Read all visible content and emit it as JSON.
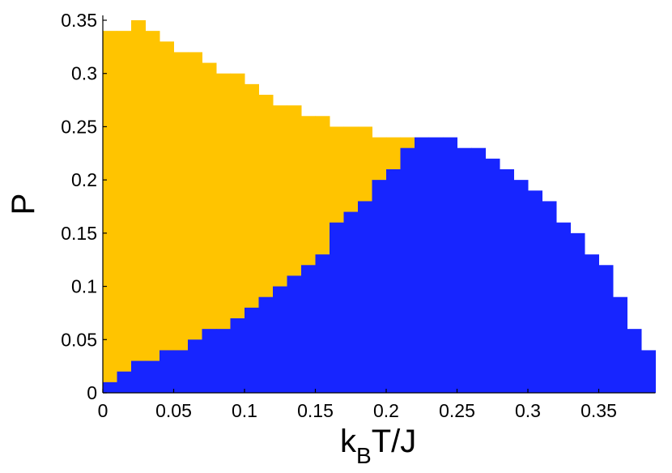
{
  "chart_data": {
    "type": "area",
    "xlabel": "k_B T/J",
    "xlabel_main": "k",
    "xlabel_sub": "B",
    "xlabel_rest": "T/J",
    "ylabel": "P",
    "xlim": [
      0,
      0.39
    ],
    "ylim": [
      0,
      0.35
    ],
    "x_ticks": [
      0,
      0.05,
      0.1,
      0.15,
      0.2,
      0.25,
      0.3,
      0.35
    ],
    "x_tick_labels": [
      "0",
      "0.05",
      "0.1",
      "0.15",
      "0.2",
      "0.25",
      "0.3",
      "0.35"
    ],
    "y_ticks": [
      0,
      0.05,
      0.1,
      0.15,
      0.2,
      0.25,
      0.3,
      0.35
    ],
    "y_tick_labels": [
      "0",
      "0.05",
      "0.1",
      "0.15",
      "0.2",
      "0.25",
      "0.3",
      "0.35"
    ],
    "bin_width": 0.01,
    "colors": {
      "upper_region": "#FFC400",
      "lower_region": "#1725FF",
      "axis": "#000000"
    },
    "series": [
      {
        "region": "upper",
        "color": "#FFC400",
        "x": [
          0,
          0.01,
          0.02,
          0.03,
          0.04,
          0.05,
          0.06,
          0.07,
          0.08,
          0.09,
          0.1,
          0.11,
          0.12,
          0.13,
          0.14,
          0.15,
          0.16,
          0.17,
          0.18,
          0.19,
          0.2,
          0.21
        ],
        "values": [
          0.34,
          0.34,
          0.35,
          0.34,
          0.33,
          0.32,
          0.32,
          0.31,
          0.3,
          0.3,
          0.29,
          0.28,
          0.27,
          0.27,
          0.26,
          0.26,
          0.25,
          0.25,
          0.25,
          0.24,
          0.24,
          0.24
        ]
      },
      {
        "region": "lower",
        "color": "#1725FF",
        "x": [
          0,
          0.01,
          0.02,
          0.03,
          0.04,
          0.05,
          0.06,
          0.07,
          0.08,
          0.09,
          0.1,
          0.11,
          0.12,
          0.13,
          0.14,
          0.15,
          0.16,
          0.17,
          0.18,
          0.19,
          0.2,
          0.21,
          0.22,
          0.23,
          0.24,
          0.25,
          0.26,
          0.27,
          0.28,
          0.29,
          0.3,
          0.31,
          0.32,
          0.33,
          0.34,
          0.35,
          0.36,
          0.37,
          0.38
        ],
        "values": [
          0.01,
          0.02,
          0.03,
          0.03,
          0.04,
          0.04,
          0.05,
          0.06,
          0.06,
          0.07,
          0.08,
          0.09,
          0.1,
          0.11,
          0.12,
          0.13,
          0.16,
          0.17,
          0.18,
          0.2,
          0.21,
          0.23,
          0.24,
          0.24,
          0.24,
          0.23,
          0.23,
          0.22,
          0.21,
          0.2,
          0.19,
          0.18,
          0.16,
          0.15,
          0.13,
          0.12,
          0.09,
          0.06,
          0.04
        ]
      }
    ]
  }
}
